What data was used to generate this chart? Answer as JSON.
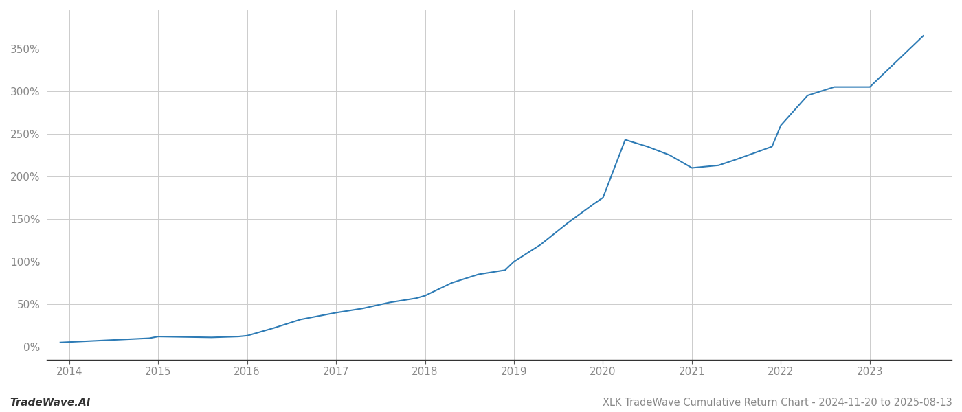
{
  "title": "XLK TradeWave Cumulative Return Chart - 2024-11-20 to 2025-08-13",
  "watermark": "TradeWave.AI",
  "line_color": "#2d7bb5",
  "line_width": 1.5,
  "background_color": "#ffffff",
  "grid_color": "#cccccc",
  "years": [
    2014,
    2015,
    2016,
    2017,
    2018,
    2019,
    2020,
    2021,
    2022,
    2023
  ],
  "x_values": [
    2013.9,
    2014.0,
    2014.3,
    2014.6,
    2014.9,
    2015.0,
    2015.3,
    2015.6,
    2015.9,
    2016.0,
    2016.3,
    2016.6,
    2016.9,
    2017.0,
    2017.3,
    2017.6,
    2017.9,
    2018.0,
    2018.3,
    2018.6,
    2018.9,
    2019.0,
    2019.3,
    2019.6,
    2019.9,
    2020.0,
    2020.25,
    2020.5,
    2020.75,
    2021.0,
    2021.3,
    2021.5,
    2021.9,
    2022.0,
    2022.3,
    2022.6,
    2023.0,
    2023.3,
    2023.6
  ],
  "y_values": [
    5.0,
    5.5,
    7.0,
    8.5,
    10.0,
    12.0,
    11.5,
    11.0,
    12.0,
    13.0,
    22.0,
    32.0,
    38.0,
    40.0,
    45.0,
    52.0,
    57.0,
    60.0,
    75.0,
    85.0,
    90.0,
    100.0,
    120.0,
    145.0,
    168.0,
    175.0,
    243.0,
    235.0,
    225.0,
    210.0,
    213.0,
    220.0,
    235.0,
    260.0,
    295.0,
    305.0,
    305.0,
    335.0,
    365.0
  ],
  "yticks": [
    0,
    50,
    100,
    150,
    200,
    250,
    300,
    350
  ],
  "ylim": [
    -15,
    395
  ],
  "xlim": [
    2013.75,
    2023.92
  ],
  "tick_fontsize": 11,
  "title_fontsize": 10.5,
  "watermark_fontsize": 11
}
